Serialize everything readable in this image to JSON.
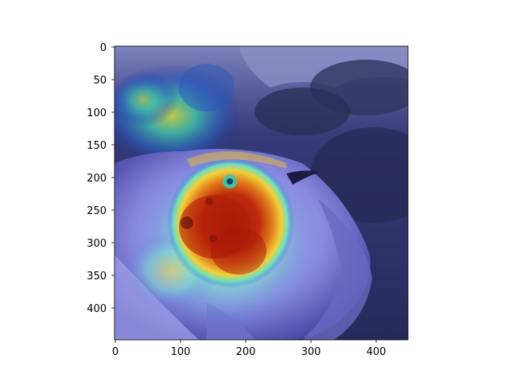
{
  "figure": {
    "image_subject": "Grad-CAM heatmap overlay on photo of a small bird held in a cupped hand",
    "colormap": "jet",
    "xlim": [
      0,
      450
    ],
    "ylim": [
      450,
      0
    ],
    "x_ticks": [
      "0",
      "100",
      "200",
      "300",
      "400"
    ],
    "y_ticks": [
      "0",
      "50",
      "100",
      "150",
      "200",
      "250",
      "300",
      "350",
      "400"
    ],
    "colors": {
      "sky": "#7a80b8",
      "background_dark": "#2b2f63",
      "hand": "#9a98e6",
      "hot": "#b41c0c",
      "warm": "#f0c830",
      "cool": "#40d0c8",
      "cold": "#1a2aa0"
    }
  }
}
